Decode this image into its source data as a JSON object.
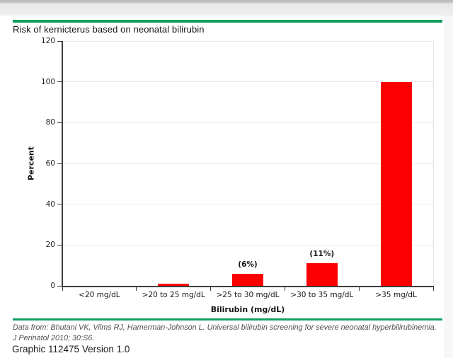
{
  "page": {
    "title": "Risk of kernicterus based on neonatal bilirubin",
    "accent_green": "#10a05f",
    "bar_red": "#fb0000"
  },
  "chart_data": {
    "type": "bar",
    "title": "Risk of kernicterus based on neonatal bilirubin",
    "categories": [
      "<20 mg/dL",
      ">20 to 25 mg/dL",
      ">25 to 30 mg/dL",
      ">30 to 35 mg/dL",
      ">35 mg/dL"
    ],
    "values": [
      0,
      1,
      6,
      11,
      100
    ],
    "bar_labels": [
      "",
      "",
      "(6%)",
      "(11%)",
      ""
    ],
    "xlabel": "Bilirubin (mg/dL)",
    "ylabel": "Percent",
    "ylim": [
      0,
      120
    ],
    "yticks": [
      0,
      20,
      40,
      60,
      80,
      100,
      120
    ],
    "grid": true,
    "legend": "none",
    "bar_color": "#fb0000"
  },
  "footer": {
    "citation": "Data from: Bhutani VK, Vilms RJ, Hamerman-Johnson L. Universal bilirubin screening for severe neonatal hyperbilirubinemia. J Perinatol 2010; 30:S6.",
    "graphic_label": "Graphic 112475 Version 1.0"
  }
}
